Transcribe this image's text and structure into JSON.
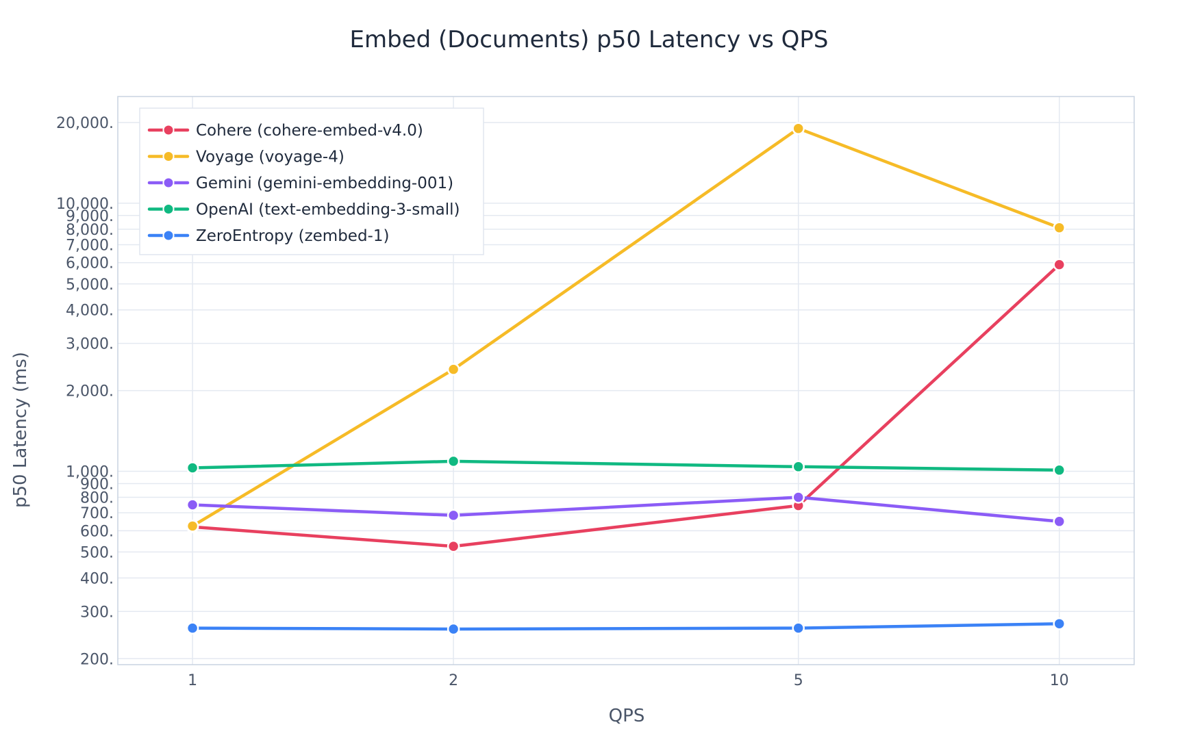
{
  "chart_data": {
    "type": "line",
    "title": "Embed (Documents) p50 Latency vs QPS",
    "xlabel": "QPS",
    "ylabel": "p50 Latency (ms)",
    "x_scale": "log",
    "y_scale": "log",
    "xlim": [
      0.82,
      12.2
    ],
    "ylim": [
      190,
      25000
    ],
    "x_ticks": [
      1,
      2,
      5,
      10
    ],
    "x_tick_labels": [
      "1",
      "2",
      "5",
      "10"
    ],
    "y_ticks": [
      200,
      300,
      400,
      500,
      600,
      700,
      800,
      900,
      1000,
      2000,
      3000,
      4000,
      5000,
      6000,
      7000,
      8000,
      9000,
      10000,
      20000
    ],
    "y_tick_labels": [
      "200.",
      "300.",
      "400.",
      "500.",
      "600.",
      "700.",
      "800.",
      "900.",
      "1,000.",
      "2,000.",
      "3,000.",
      "4,000.",
      "5,000.",
      "6,000.",
      "7,000.",
      "8,000.",
      "9,000.",
      "10,000.",
      "20,000."
    ],
    "grid": true,
    "legend_position": "top-left",
    "x": [
      1,
      2,
      5,
      10
    ],
    "series": [
      {
        "name": "Cohere (cohere-embed-v4.0)",
        "color": "#e8405f",
        "values": [
          620,
          525,
          745,
          5900
        ]
      },
      {
        "name": "Voyage (voyage-4)",
        "color": "#f6bb27",
        "values": [
          625,
          2400,
          19000,
          8100
        ]
      },
      {
        "name": "Gemini (gemini-embedding-001)",
        "color": "#8b5cf6",
        "values": [
          750,
          685,
          800,
          650
        ]
      },
      {
        "name": "OpenAI (text-embedding-3-small)",
        "color": "#10b981",
        "values": [
          1030,
          1090,
          1040,
          1010
        ]
      },
      {
        "name": "ZeroEntropy (zembed-1)",
        "color": "#3b82f6",
        "values": [
          260,
          258,
          260,
          270
        ]
      }
    ]
  }
}
